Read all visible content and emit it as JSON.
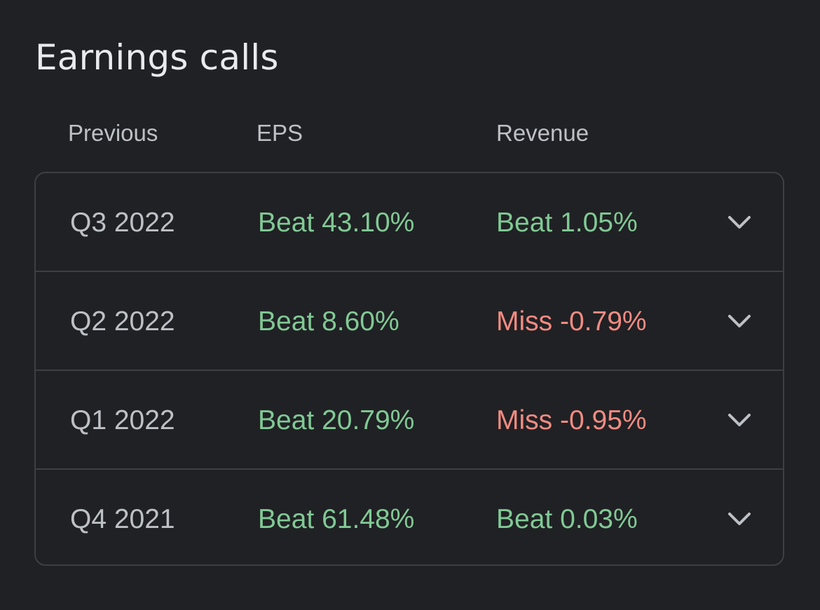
{
  "title": "Earnings calls",
  "columns": {
    "previous": "Previous",
    "eps": "EPS",
    "revenue": "Revenue"
  },
  "colors": {
    "beat": "#81c995",
    "miss": "#f28b82"
  },
  "rows": [
    {
      "period": "Q3 2022",
      "eps": "Beat 43.10%",
      "eps_status": "beat",
      "revenue": "Beat 1.05%",
      "revenue_status": "beat",
      "icon": "chevron-down-icon"
    },
    {
      "period": "Q2 2022",
      "eps": "Beat 8.60%",
      "eps_status": "beat",
      "revenue": "Miss -0.79%",
      "revenue_status": "miss",
      "icon": "chevron-down-icon"
    },
    {
      "period": "Q1 2022",
      "eps": "Beat 20.79%",
      "eps_status": "beat",
      "revenue": "Miss -0.95%",
      "revenue_status": "miss",
      "icon": "chevron-down-icon"
    },
    {
      "period": "Q4 2021",
      "eps": "Beat 61.48%",
      "eps_status": "beat",
      "revenue": "Beat 0.03%",
      "revenue_status": "beat",
      "icon": "chevron-down-icon"
    }
  ]
}
